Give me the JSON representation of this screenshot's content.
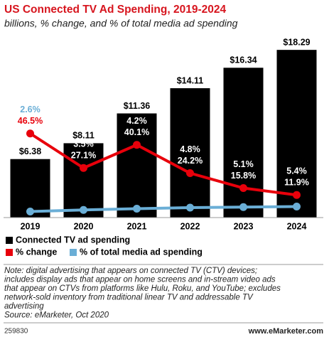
{
  "chart_data": {
    "type": "bar",
    "title": "US Connected TV Ad Spending, 2019-2024",
    "subtitle": "billions, % change, and % of total media ad spending",
    "categories": [
      "2019",
      "2020",
      "2021",
      "2022",
      "2023",
      "2024"
    ],
    "ylim": [
      0,
      19
    ],
    "y2lim": [
      0,
      100
    ],
    "series": [
      {
        "name": "Connected TV ad spending",
        "type": "bar",
        "color": "#000000",
        "values": [
          6.38,
          8.11,
          11.36,
          14.11,
          16.34,
          18.29
        ],
        "value_labels": [
          "$6.38",
          "$8.11",
          "$11.36",
          "$14.11",
          "$16.34",
          "$18.29"
        ]
      },
      {
        "name": "% change",
        "type": "line",
        "axis": "y2",
        "color": "#e8000b",
        "values": [
          46.5,
          27.1,
          40.1,
          24.2,
          15.8,
          11.9
        ],
        "value_labels": [
          "46.5%",
          "27.1%",
          "40.1%",
          "24.2%",
          "15.8%",
          "11.9%"
        ]
      },
      {
        "name": "% of total media ad spending",
        "type": "line",
        "axis": "y2",
        "color": "#6aaed6",
        "values": [
          2.6,
          3.5,
          4.2,
          4.8,
          5.1,
          5.4
        ],
        "value_labels": [
          "2.6%",
          "3.5%",
          "4.2%",
          "4.8%",
          "5.1%",
          "5.4%"
        ]
      }
    ],
    "note": [
      "Note: digital advertising that appears on connected TV (CTV) devices;",
      "includes display ads that appear on home screens and in-stream video ads",
      "that appear on CTVs from platforms like Hulu, Roku, and YouTube; excludes",
      "network-sold inventory from traditional linear TV and addressable TV",
      "advertising"
    ],
    "source": "Source: eMarketer, Oct 2020",
    "chart_id": "259830",
    "website": "www.eMarketer.com"
  }
}
